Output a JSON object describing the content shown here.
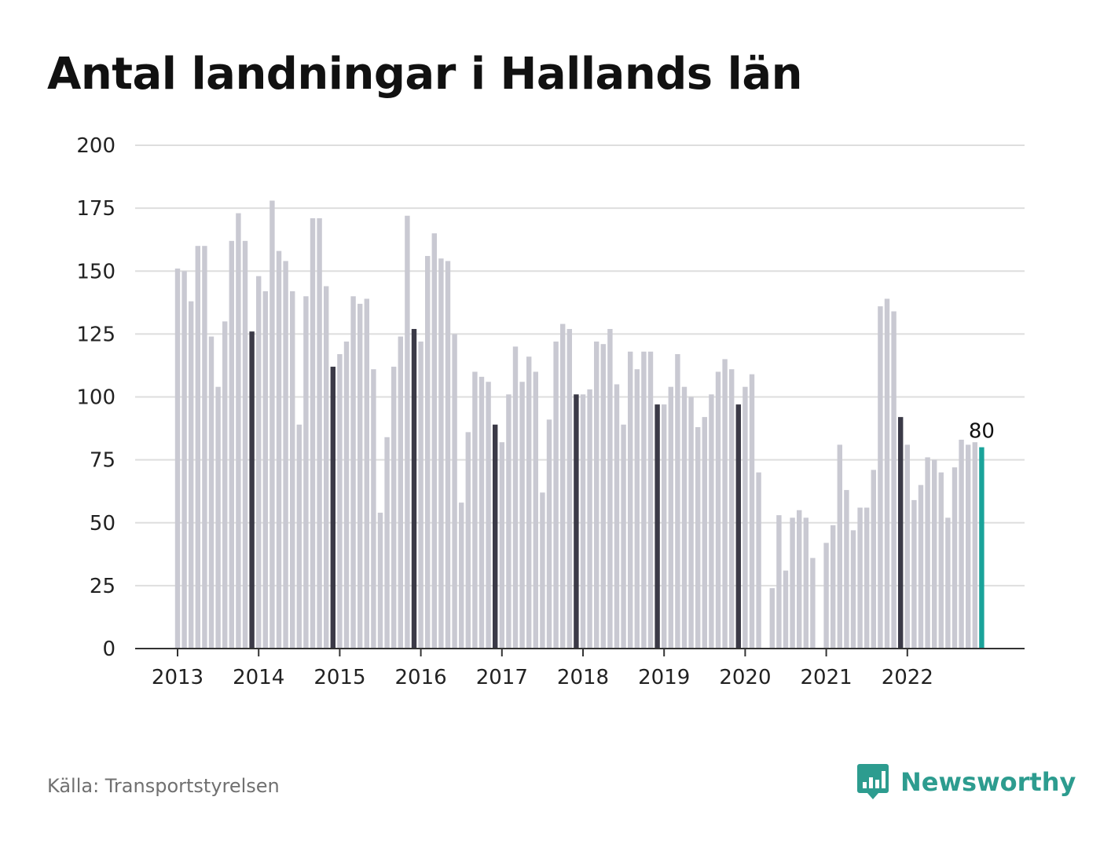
{
  "title": "Antal landningar i Hallands län",
  "source": "Källa: Transportstyrelsen",
  "brand": {
    "name": "Newsworthy",
    "logo_icon": "bar-chart-icon"
  },
  "colors": {
    "bar": "#c9c9d2",
    "december_bar": "#3b3a47",
    "latest_bar": "#1aa39a",
    "grid": "#dedede",
    "axis": "#333333",
    "brand": "#2d9c8f"
  },
  "chart_data": {
    "type": "bar",
    "title": "Antal landningar i Hallands län",
    "xlabel": "",
    "ylabel": "",
    "ylim": [
      0,
      200
    ],
    "y_ticks": [
      0,
      25,
      50,
      75,
      100,
      125,
      150,
      175,
      200
    ],
    "x_tick_labels": [
      "2013",
      "2014",
      "2015",
      "2016",
      "2017",
      "2018",
      "2019",
      "2020",
      "2021",
      "2022"
    ],
    "grid": true,
    "frequency": "monthly",
    "start": "2013-01",
    "end": "2022-12",
    "highlight": "December bars darker; latest month highlighted",
    "values": [
      151,
      150,
      138,
      160,
      160,
      124,
      104,
      130,
      162,
      173,
      162,
      126,
      148,
      142,
      178,
      158,
      154,
      142,
      89,
      140,
      171,
      171,
      144,
      112,
      117,
      122,
      140,
      137,
      139,
      111,
      54,
      84,
      112,
      124,
      172,
      127,
      122,
      156,
      165,
      155,
      154,
      125,
      58,
      86,
      110,
      108,
      106,
      89,
      82,
      101,
      120,
      106,
      116,
      110,
      62,
      91,
      122,
      129,
      127,
      101,
      101,
      103,
      122,
      121,
      127,
      105,
      89,
      118,
      111,
      118,
      118,
      97,
      97,
      104,
      117,
      104,
      100,
      88,
      92,
      101,
      110,
      115,
      111,
      97,
      104,
      109,
      70,
      0,
      24,
      53,
      31,
      52,
      55,
      52,
      36,
      0,
      42,
      49,
      81,
      63,
      47,
      56,
      56,
      71,
      136,
      139,
      134,
      92,
      81,
      59,
      65,
      76,
      75,
      70,
      52,
      72,
      83,
      81,
      82,
      80
    ],
    "last_value_label": "80"
  }
}
